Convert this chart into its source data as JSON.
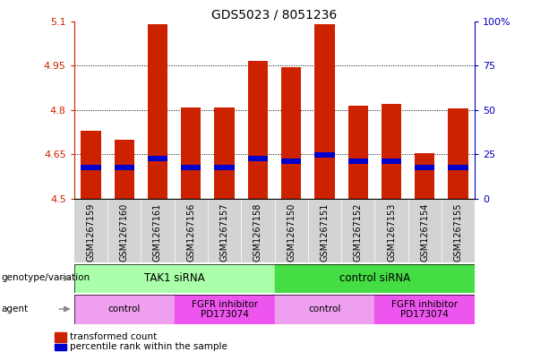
{
  "title": "GDS5023 / 8051236",
  "samples": [
    "GSM1267159",
    "GSM1267160",
    "GSM1267161",
    "GSM1267156",
    "GSM1267157",
    "GSM1267158",
    "GSM1267150",
    "GSM1267151",
    "GSM1267152",
    "GSM1267153",
    "GSM1267154",
    "GSM1267155"
  ],
  "transformed_counts": [
    4.73,
    4.7,
    5.09,
    4.81,
    4.81,
    4.965,
    4.945,
    5.09,
    4.815,
    4.82,
    4.655,
    4.805
  ],
  "percentile_bottoms": [
    4.598,
    4.598,
    4.628,
    4.598,
    4.598,
    4.628,
    4.618,
    4.638,
    4.618,
    4.618,
    4.598,
    4.598
  ],
  "percentile_heights": [
    0.018,
    0.018,
    0.018,
    0.018,
    0.018,
    0.018,
    0.018,
    0.018,
    0.018,
    0.018,
    0.018,
    0.018
  ],
  "ylim_left": [
    4.5,
    5.1
  ],
  "ylim_right": [
    0,
    100
  ],
  "yticks_left": [
    4.5,
    4.65,
    4.8,
    4.95,
    5.1
  ],
  "yticks_right": [
    0,
    25,
    50,
    75,
    100
  ],
  "ytick_labels_left": [
    "4.5",
    "4.65",
    "4.8",
    "4.95",
    "5.1"
  ],
  "ytick_labels_right": [
    "0",
    "25",
    "50",
    "75",
    "100%"
  ],
  "bar_color": "#CC2200",
  "percentile_color": "#0000CC",
  "bar_width": 0.6,
  "genotype_groups": [
    {
      "label": "TAK1 siRNA",
      "start": 0,
      "end": 6,
      "color": "#AAFFAA"
    },
    {
      "label": "control siRNA",
      "start": 6,
      "end": 12,
      "color": "#44DD44"
    }
  ],
  "agent_groups": [
    {
      "label": "control",
      "start": 0,
      "end": 3,
      "color": "#EEA0EE"
    },
    {
      "label": "FGFR inhibitor\nPD173074",
      "start": 3,
      "end": 6,
      "color": "#EE55EE"
    },
    {
      "label": "control",
      "start": 6,
      "end": 9,
      "color": "#EEA0EE"
    },
    {
      "label": "FGFR inhibitor\nPD173074",
      "start": 9,
      "end": 12,
      "color": "#EE55EE"
    }
  ],
  "legend_items": [
    {
      "label": "transformed count",
      "color": "#CC2200"
    },
    {
      "label": "percentile rank within the sample",
      "color": "#0000CC"
    }
  ],
  "genotype_label": "genotype/variation",
  "agent_label": "agent",
  "background_color": "#ffffff",
  "axis_label_color_left": "#CC2200",
  "axis_label_color_right": "#0000BB",
  "sample_bg_color": "#D3D3D3",
  "arrow_color": "#888888"
}
